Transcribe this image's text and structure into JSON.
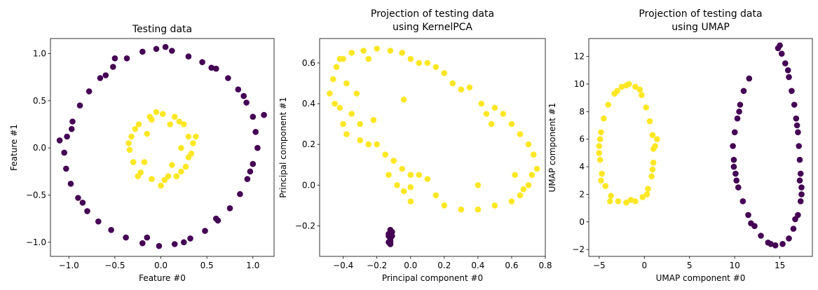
{
  "chart_data": [
    {
      "type": "scatter",
      "title": [
        "Testing data"
      ],
      "xlabel": "Feature #0",
      "ylabel": "Feature #1",
      "xlim": [
        -1.2,
        1.23
      ],
      "ylim": [
        -1.15,
        1.16
      ],
      "xticks": [
        -1.0,
        -0.5,
        0.0,
        0.5,
        1.0
      ],
      "xtick_labels": [
        "−1.0",
        "−0.5",
        "0.0",
        "0.5",
        "1.0"
      ],
      "yticks": [
        -1.0,
        -0.5,
        0.0,
        0.5,
        1.0
      ],
      "ytick_labels": [
        "−1.0",
        "−0.5",
        "0.0",
        "0.5",
        "1.0"
      ],
      "series": [
        {
          "color": "#440154",
          "points": [
            [
              1.05,
              0.0
            ],
            [
              1.03,
              0.17
            ],
            [
              1.0,
              0.33
            ],
            [
              0.93,
              0.48
            ],
            [
              0.84,
              0.62
            ],
            [
              0.73,
              0.74
            ],
            [
              0.6,
              0.84
            ],
            [
              0.45,
              0.91
            ],
            [
              0.3,
              0.97
            ],
            [
              0.12,
              1.03
            ],
            [
              -0.05,
              1.05
            ],
            [
              -0.2,
              1.02
            ],
            [
              -0.37,
              0.95
            ],
            [
              -0.52,
              0.86
            ],
            [
              -0.66,
              0.74
            ],
            [
              -0.78,
              0.6
            ],
            [
              -0.88,
              0.45
            ],
            [
              -0.96,
              0.28
            ],
            [
              -1.02,
              0.12
            ],
            [
              -1.05,
              -0.05
            ],
            [
              -1.03,
              -0.22
            ],
            [
              -0.98,
              -0.38
            ],
            [
              -0.9,
              -0.53
            ],
            [
              -0.8,
              -0.67
            ],
            [
              -0.68,
              -0.78
            ],
            [
              -0.54,
              -0.87
            ],
            [
              -0.38,
              -0.95
            ],
            [
              -0.2,
              -1.01
            ],
            [
              -0.02,
              -1.04
            ],
            [
              0.15,
              -1.02
            ],
            [
              0.32,
              -0.96
            ],
            [
              0.48,
              -0.88
            ],
            [
              0.62,
              -0.77
            ],
            [
              0.75,
              -0.64
            ],
            [
              0.86,
              -0.49
            ],
            [
              0.94,
              -0.33
            ],
            [
              1.0,
              -0.17
            ],
            [
              1.12,
              0.35
            ],
            [
              -1.1,
              0.08
            ],
            [
              0.05,
              1.07
            ],
            [
              -0.5,
              0.95
            ],
            [
              0.55,
              0.85
            ],
            [
              -0.85,
              -0.58
            ],
            [
              0.6,
              -0.75
            ],
            [
              -0.15,
              -0.95
            ],
            [
              0.25,
              -1.0
            ],
            [
              0.9,
              0.55
            ],
            [
              -0.6,
              0.77
            ],
            [
              0.97,
              -0.25
            ],
            [
              -0.97,
              0.2
            ]
          ]
        },
        {
          "color": "#fde725",
          "points": [
            [
              0.3,
              0.12
            ],
            [
              0.25,
              0.25
            ],
            [
              0.15,
              0.33
            ],
            [
              0.02,
              0.36
            ],
            [
              -0.12,
              0.33
            ],
            [
              -0.24,
              0.25
            ],
            [
              -0.32,
              0.12
            ],
            [
              -0.34,
              -0.02
            ],
            [
              -0.3,
              -0.15
            ],
            [
              -0.22,
              -0.26
            ],
            [
              -0.1,
              -0.33
            ],
            [
              0.04,
              -0.34
            ],
            [
              0.17,
              -0.3
            ],
            [
              0.27,
              -0.2
            ],
            [
              0.33,
              -0.06
            ],
            [
              0.35,
              0.05
            ],
            [
              0.2,
              0.28
            ],
            [
              -0.05,
              0.38
            ],
            [
              -0.28,
              0.2
            ],
            [
              -0.35,
              0.05
            ],
            [
              -0.25,
              -0.3
            ],
            [
              0.0,
              -0.4
            ],
            [
              0.22,
              -0.25
            ],
            [
              0.3,
              -0.1
            ],
            [
              0.1,
              0.25
            ],
            [
              -0.15,
              0.15
            ],
            [
              -0.18,
              -0.15
            ],
            [
              0.12,
              -0.18
            ],
            [
              0.38,
              0.12
            ],
            [
              0.22,
              0.0
            ],
            [
              -0.1,
              0.3
            ],
            [
              0.08,
              -0.3
            ]
          ]
        }
      ]
    },
    {
      "type": "scatter",
      "title": [
        "Projection of testing data",
        "using KernelPCA"
      ],
      "xlabel": "Principal component #0",
      "ylabel": "Principal component #1",
      "xlim": [
        -0.54,
        0.8
      ],
      "ylim": [
        -0.35,
        0.72
      ],
      "xticks": [
        -0.4,
        -0.2,
        0.0,
        0.2,
        0.4,
        0.6,
        0.8
      ],
      "xtick_labels": [
        "−0.4",
        "−0.2",
        "0.0",
        "0.2",
        "0.4",
        "0.6",
        "0.8"
      ],
      "yticks": [
        -0.2,
        0.0,
        0.2,
        0.4,
        0.6
      ],
      "ytick_labels": [
        "−0.2",
        "0.0",
        "0.2",
        "0.4",
        "0.6"
      ],
      "series": [
        {
          "color": "#fde725",
          "points": [
            [
              -0.48,
              0.45
            ],
            [
              -0.46,
              0.52
            ],
            [
              -0.44,
              0.58
            ],
            [
              -0.4,
              0.62
            ],
            [
              -0.35,
              0.65
            ],
            [
              -0.28,
              0.66
            ],
            [
              -0.2,
              0.67
            ],
            [
              -0.12,
              0.66
            ],
            [
              -0.05,
              0.65
            ],
            [
              0.0,
              0.62
            ],
            [
              0.05,
              0.6
            ],
            [
              0.1,
              0.6
            ],
            [
              0.15,
              0.58
            ],
            [
              0.2,
              0.55
            ],
            [
              0.25,
              0.5
            ],
            [
              -0.42,
              0.38
            ],
            [
              -0.4,
              0.3
            ],
            [
              -0.38,
              0.25
            ],
            [
              -0.35,
              0.35
            ],
            [
              -0.3,
              0.22
            ],
            [
              -0.25,
              0.2
            ],
            [
              -0.2,
              0.2
            ],
            [
              -0.15,
              0.15
            ],
            [
              -0.1,
              0.12
            ],
            [
              -0.05,
              0.08
            ],
            [
              0.0,
              0.05
            ],
            [
              0.05,
              0.05
            ],
            [
              0.1,
              0.03
            ],
            [
              -0.08,
              0.0
            ],
            [
              -0.04,
              -0.03
            ],
            [
              0.0,
              -0.08
            ],
            [
              0.15,
              -0.05
            ],
            [
              0.2,
              -0.1
            ],
            [
              0.3,
              -0.12
            ],
            [
              0.4,
              -0.12
            ],
            [
              0.5,
              -0.1
            ],
            [
              0.6,
              -0.08
            ],
            [
              0.65,
              -0.05
            ],
            [
              0.7,
              0.0
            ],
            [
              0.72,
              0.05
            ],
            [
              0.75,
              0.08
            ],
            [
              0.73,
              0.15
            ],
            [
              0.7,
              0.2
            ],
            [
              0.65,
              0.25
            ],
            [
              0.6,
              0.3
            ],
            [
              0.55,
              0.35
            ],
            [
              0.5,
              0.38
            ],
            [
              0.45,
              0.35
            ],
            [
              0.42,
              0.4
            ],
            [
              0.35,
              0.48
            ],
            [
              -0.3,
              0.3
            ],
            [
              -0.38,
              0.5
            ],
            [
              -0.25,
              0.62
            ],
            [
              -0.45,
              0.4
            ],
            [
              0.62,
              0.05
            ],
            [
              0.67,
              -0.02
            ],
            [
              -0.13,
              0.05
            ],
            [
              -0.22,
              0.32
            ],
            [
              -0.04,
              0.42
            ],
            [
              0.0,
              -0.01
            ],
            [
              0.48,
              0.3
            ],
            [
              0.3,
              0.47
            ],
            [
              -0.32,
              0.45
            ],
            [
              -0.42,
              0.62
            ],
            [
              0.4,
              0.0
            ]
          ]
        },
        {
          "color": "#440154",
          "points": [
            [
              -0.12,
              -0.22
            ],
            [
              -0.13,
              -0.24
            ],
            [
              -0.11,
              -0.25
            ],
            [
              -0.12,
              -0.27
            ],
            [
              -0.13,
              -0.28
            ],
            [
              -0.12,
              -0.29
            ],
            [
              -0.11,
              -0.23
            ],
            [
              -0.12,
              -0.26
            ],
            [
              -0.13,
              -0.25
            ],
            [
              -0.12,
              -0.28
            ]
          ]
        }
      ]
    },
    {
      "type": "scatter",
      "title": [
        "Projection of testing data",
        "using UMAP"
      ],
      "xlabel": "UMAP component #0",
      "ylabel": "UMAP component #1",
      "xlim": [
        -6.15,
        18.6
      ],
      "ylim": [
        -2.5,
        13.3
      ],
      "xticks": [
        -5,
        0,
        5,
        10,
        15
      ],
      "xtick_labels": [
        "−5",
        "0",
        "5",
        "10",
        "15"
      ],
      "yticks": [
        -2,
        0,
        2,
        4,
        6,
        8,
        10,
        12
      ],
      "ytick_labels": [
        "−2",
        "0",
        "2",
        "4",
        "6",
        "8",
        "10",
        "12"
      ],
      "series": [
        {
          "color": "#fde725",
          "points": [
            [
              -5.0,
              5.5
            ],
            [
              -4.8,
              6.5
            ],
            [
              -4.5,
              7.5
            ],
            [
              -4.0,
              8.5
            ],
            [
              -3.3,
              9.3
            ],
            [
              -2.5,
              9.8
            ],
            [
              -1.7,
              10.0
            ],
            [
              -1.0,
              9.8
            ],
            [
              -0.3,
              9.2
            ],
            [
              0.2,
              8.3
            ],
            [
              0.6,
              7.3
            ],
            [
              0.9,
              6.3
            ],
            [
              1.0,
              5.3
            ],
            [
              1.0,
              4.3
            ],
            [
              0.8,
              3.3
            ],
            [
              0.4,
              2.4
            ],
            [
              -0.2,
              1.8
            ],
            [
              -1.0,
              1.5
            ],
            [
              -2.0,
              1.4
            ],
            [
              -2.9,
              1.5
            ],
            [
              -3.7,
              1.9
            ],
            [
              -4.3,
              2.6
            ],
            [
              -4.7,
              3.5
            ],
            [
              -4.9,
              4.5
            ],
            [
              -5.0,
              5.0
            ],
            [
              1.2,
              5.5
            ],
            [
              -3.0,
              9.5
            ],
            [
              -0.5,
              9.6
            ],
            [
              -4.8,
              3.0
            ],
            [
              -1.5,
              1.6
            ],
            [
              0.3,
              2.0
            ],
            [
              1.4,
              6.0
            ],
            [
              -2.0,
              9.9
            ],
            [
              -3.8,
              1.5
            ],
            [
              0.9,
              3.8
            ],
            [
              -4.9,
              6.0
            ]
          ]
        },
        {
          "color": "#440154",
          "points": [
            [
              14.8,
              12.6
            ],
            [
              15.2,
              12.2
            ],
            [
              15.6,
              11.5
            ],
            [
              16.0,
              10.5
            ],
            [
              16.3,
              9.5
            ],
            [
              16.6,
              8.5
            ],
            [
              16.8,
              7.5
            ],
            [
              17.0,
              6.5
            ],
            [
              17.1,
              5.5
            ],
            [
              17.2,
              4.5
            ],
            [
              17.3,
              3.5
            ],
            [
              17.4,
              2.5
            ],
            [
              17.3,
              1.5
            ],
            [
              17.0,
              0.5
            ],
            [
              16.5,
              -0.5
            ],
            [
              16.0,
              -1.2
            ],
            [
              15.3,
              -1.6
            ],
            [
              14.5,
              -1.7
            ],
            [
              13.7,
              -1.5
            ],
            [
              12.9,
              -1.0
            ],
            [
              12.2,
              -0.3
            ],
            [
              11.5,
              0.5
            ],
            [
              10.9,
              1.5
            ],
            [
              10.4,
              2.5
            ],
            [
              10.1,
              3.5
            ],
            [
              9.9,
              4.5
            ],
            [
              9.8,
              5.5
            ],
            [
              10.0,
              6.5
            ],
            [
              10.3,
              7.5
            ],
            [
              10.6,
              8.5
            ],
            [
              11.0,
              9.5
            ],
            [
              11.6,
              10.4
            ],
            [
              15.0,
              12.8
            ],
            [
              15.9,
              11.0
            ],
            [
              17.2,
              3.0
            ],
            [
              16.7,
              0.2
            ],
            [
              14.0,
              -1.6
            ],
            [
              11.8,
              -0.1
            ],
            [
              10.2,
              3.0
            ],
            [
              10.5,
              8.0
            ],
            [
              16.9,
              7.0
            ],
            [
              17.4,
              2.0
            ],
            [
              9.9,
              4.0
            ]
          ]
        }
      ]
    }
  ]
}
